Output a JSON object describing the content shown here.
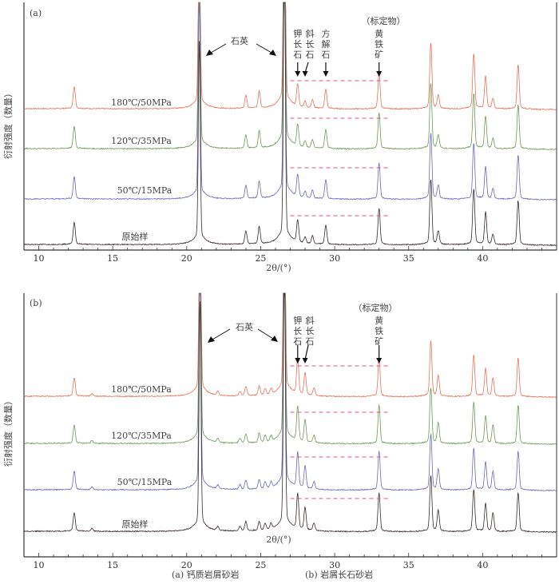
{
  "chart_data": [
    {
      "type": "line",
      "panel_label": "(a)",
      "xlabel": "2θ/(°)",
      "ylabel": "衍射强度（数量）",
      "xlim": [
        9,
        45
      ],
      "xticks": [
        10,
        15,
        20,
        25,
        30,
        35,
        40
      ],
      "annotations": {
        "quartz": "石英",
        "reference": "（标定物）",
        "minerals": [
          {
            "name": "钾长石",
            "x": 27.5
          },
          {
            "name": "斜长石",
            "x": 28.0
          },
          {
            "name": "方解石",
            "x": 29.4
          },
          {
            "name": "黄铁矿",
            "x": 33.0
          }
        ]
      },
      "series": [
        {
          "name": "180℃/50MPa",
          "color": "#e8735a"
        },
        {
          "name": "120℃/35MPa",
          "color": "#6f9a5a"
        },
        {
          "name": "50℃/15MPa",
          "color": "#6a6ab8"
        },
        {
          "name": "原始样",
          "color": "#3a2a2a"
        }
      ],
      "peaks": [
        {
          "x": 12.4,
          "h": 0.22
        },
        {
          "x": 20.85,
          "h": 2.0
        },
        {
          "x": 24.0,
          "h": 0.13
        },
        {
          "x": 24.9,
          "h": 0.17
        },
        {
          "x": 26.6,
          "h": 3.0
        },
        {
          "x": 27.5,
          "h": 0.22
        },
        {
          "x": 28.0,
          "h": 0.06
        },
        {
          "x": 28.5,
          "h": 0.08
        },
        {
          "x": 29.4,
          "h": 0.19
        },
        {
          "x": 33.0,
          "h": 0.36
        },
        {
          "x": 36.5,
          "h": 0.65
        },
        {
          "x": 37.0,
          "h": 0.13
        },
        {
          "x": 39.4,
          "h": 0.55
        },
        {
          "x": 40.2,
          "h": 0.32
        },
        {
          "x": 40.7,
          "h": 0.1
        },
        {
          "x": 42.4,
          "h": 0.44
        }
      ]
    },
    {
      "type": "line",
      "panel_label": "(b)",
      "xlabel": "2θ/(°)",
      "ylabel": "衍射强度（数量）",
      "xlim": [
        9,
        45
      ],
      "xticks": [
        10,
        15,
        20,
        25,
        30,
        35,
        40
      ],
      "annotations": {
        "quartz": "石英",
        "reference": "（标定物）",
        "minerals": [
          {
            "name": "钾长石",
            "x": 27.5
          },
          {
            "name": "斜长石",
            "x": 28.0
          },
          {
            "name": "黄铁矿",
            "x": 33.0
          }
        ]
      },
      "series": [
        {
          "name": "180℃/50MPa",
          "color": "#e8735a"
        },
        {
          "name": "120℃/35MPa",
          "color": "#6f9a5a"
        },
        {
          "name": "50℃/15MPa",
          "color": "#6a6ab8"
        },
        {
          "name": "原始样",
          "color": "#3a2a2a"
        }
      ],
      "peaks": [
        {
          "x": 12.4,
          "h": 0.2
        },
        {
          "x": 13.6,
          "h": 0.03
        },
        {
          "x": 20.9,
          "h": 2.5
        },
        {
          "x": 22.1,
          "h": 0.04
        },
        {
          "x": 23.6,
          "h": 0.05
        },
        {
          "x": 24.0,
          "h": 0.1
        },
        {
          "x": 24.9,
          "h": 0.1
        },
        {
          "x": 25.3,
          "h": 0.07
        },
        {
          "x": 25.7,
          "h": 0.06
        },
        {
          "x": 26.6,
          "h": 3.0
        },
        {
          "x": 27.5,
          "h": 0.38
        },
        {
          "x": 28.0,
          "h": 0.24
        },
        {
          "x": 28.6,
          "h": 0.08
        },
        {
          "x": 33.0,
          "h": 0.42
        },
        {
          "x": 36.5,
          "h": 0.6
        },
        {
          "x": 37.0,
          "h": 0.22
        },
        {
          "x": 39.4,
          "h": 0.45
        },
        {
          "x": 40.2,
          "h": 0.3
        },
        {
          "x": 40.7,
          "h": 0.2
        },
        {
          "x": 42.4,
          "h": 0.42
        }
      ]
    }
  ],
  "caption": {
    "a": "(a) 钙质岩屑砂岩",
    "b": "(b) 岩屑长石砂岩"
  }
}
